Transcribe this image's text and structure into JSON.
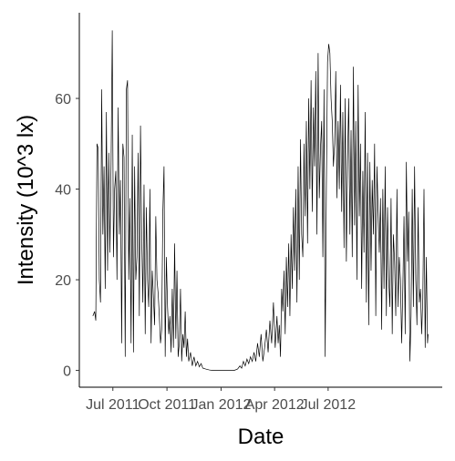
{
  "chart_data": {
    "type": "line",
    "title": "",
    "xlabel": "Date",
    "ylabel": "Intensity (10^3 lx)",
    "x_type": "date",
    "xlim": [
      "2011-05-05",
      "2013-01-11"
    ],
    "ylim": [
      -3.7,
      78.9
    ],
    "grid": false,
    "legend": "none",
    "line_color": "#000000",
    "x_ticks": [
      {
        "value": "2011-07-01",
        "label": "Jul 2011"
      },
      {
        "value": "2011-10-01",
        "label": "Oct 2011"
      },
      {
        "value": "2012-01-01",
        "label": "Jan 2012"
      },
      {
        "value": "2012-04-01",
        "label": "Apr 2012"
      },
      {
        "value": "2012-07-01",
        "label": "Jul 2012"
      }
    ],
    "y_ticks": [
      {
        "value": 0,
        "label": "0"
      },
      {
        "value": 20,
        "label": "20"
      },
      {
        "value": 40,
        "label": "40"
      },
      {
        "value": 60,
        "label": "60"
      }
    ],
    "series": [
      {
        "x": [
          "2011-05-28",
          "2011-05-31",
          "2011-06-02",
          "2011-06-04",
          "2011-06-06",
          "2011-06-08",
          "2011-06-10",
          "2011-06-12",
          "2011-06-14",
          "2011-06-16",
          "2011-06-18",
          "2011-06-20",
          "2011-06-22",
          "2011-06-24",
          "2011-06-26",
          "2011-06-28",
          "2011-06-30",
          "2011-07-02",
          "2011-07-04",
          "2011-07-06",
          "2011-07-08",
          "2011-07-10",
          "2011-07-12",
          "2011-07-14",
          "2011-07-16",
          "2011-07-18",
          "2011-07-20",
          "2011-07-22",
          "2011-07-24",
          "2011-07-26",
          "2011-07-28",
          "2011-07-30",
          "2011-08-01",
          "2011-08-03",
          "2011-08-05",
          "2011-08-07",
          "2011-08-09",
          "2011-08-11",
          "2011-08-13",
          "2011-08-15",
          "2011-08-17",
          "2011-08-19",
          "2011-08-21",
          "2011-08-23",
          "2011-08-25",
          "2011-08-27",
          "2011-08-29",
          "2011-08-31",
          "2011-09-02",
          "2011-09-04",
          "2011-09-06",
          "2011-09-08",
          "2011-09-10",
          "2011-09-12",
          "2011-09-14",
          "2011-09-16",
          "2011-09-18",
          "2011-09-20",
          "2011-09-22",
          "2011-09-24",
          "2011-09-26",
          "2011-09-28",
          "2011-09-30",
          "2011-10-02",
          "2011-10-04",
          "2011-10-06",
          "2011-10-08",
          "2011-10-10",
          "2011-10-12",
          "2011-10-14",
          "2011-10-16",
          "2011-10-18",
          "2011-10-20",
          "2011-10-22",
          "2011-10-24",
          "2011-10-26",
          "2011-10-28",
          "2011-10-30",
          "2011-11-01",
          "2011-11-03",
          "2011-11-05",
          "2011-11-07",
          "2011-11-10",
          "2011-11-13",
          "2011-11-16",
          "2011-11-19",
          "2011-11-22",
          "2011-11-25",
          "2011-11-28",
          "2011-12-01",
          "2011-12-06",
          "2011-12-12",
          "2011-12-18",
          "2011-12-24",
          "2011-12-30",
          "2012-01-05",
          "2012-01-11",
          "2012-01-17",
          "2012-01-23",
          "2012-01-29",
          "2012-02-02",
          "2012-02-05",
          "2012-02-08",
          "2012-02-11",
          "2012-02-14",
          "2012-02-17",
          "2012-02-20",
          "2012-02-23",
          "2012-02-26",
          "2012-02-29",
          "2012-03-03",
          "2012-03-06",
          "2012-03-09",
          "2012-03-12",
          "2012-03-15",
          "2012-03-18",
          "2012-03-21",
          "2012-03-24",
          "2012-03-27",
          "2012-03-30",
          "2012-04-02",
          "2012-04-05",
          "2012-04-07",
          "2012-04-09",
          "2012-04-11",
          "2012-04-13",
          "2012-04-15",
          "2012-04-17",
          "2012-04-19",
          "2012-04-21",
          "2012-04-23",
          "2012-04-25",
          "2012-04-27",
          "2012-04-29",
          "2012-05-01",
          "2012-05-03",
          "2012-05-05",
          "2012-05-07",
          "2012-05-09",
          "2012-05-11",
          "2012-05-13",
          "2012-05-15",
          "2012-05-17",
          "2012-05-19",
          "2012-05-21",
          "2012-05-23",
          "2012-05-25",
          "2012-05-27",
          "2012-05-29",
          "2012-05-31",
          "2012-06-02",
          "2012-06-04",
          "2012-06-06",
          "2012-06-08",
          "2012-06-10",
          "2012-06-12",
          "2012-06-14",
          "2012-06-16",
          "2012-06-18",
          "2012-06-20",
          "2012-06-22",
          "2012-06-24",
          "2012-06-26",
          "2012-06-28",
          "2012-06-30",
          "2012-07-02",
          "2012-07-04",
          "2012-07-06",
          "2012-07-08",
          "2012-07-10",
          "2012-07-12",
          "2012-07-14",
          "2012-07-16",
          "2012-07-18",
          "2012-07-20",
          "2012-07-22",
          "2012-07-24",
          "2012-07-26",
          "2012-07-28",
          "2012-07-30",
          "2012-08-01",
          "2012-08-03",
          "2012-08-05",
          "2012-08-07",
          "2012-08-09",
          "2012-08-11",
          "2012-08-13",
          "2012-08-15",
          "2012-08-17",
          "2012-08-19",
          "2012-08-21",
          "2012-08-23",
          "2012-08-25",
          "2012-08-27",
          "2012-08-29",
          "2012-08-31",
          "2012-09-02",
          "2012-09-04",
          "2012-09-06",
          "2012-09-08",
          "2012-09-10",
          "2012-09-12",
          "2012-09-14",
          "2012-09-16",
          "2012-09-18",
          "2012-09-20",
          "2012-09-22",
          "2012-09-24",
          "2012-09-26",
          "2012-09-28",
          "2012-09-30",
          "2012-10-02",
          "2012-10-04",
          "2012-10-06",
          "2012-10-08",
          "2012-10-10",
          "2012-10-12",
          "2012-10-14",
          "2012-10-16",
          "2012-10-18",
          "2012-10-20",
          "2012-10-22",
          "2012-10-24",
          "2012-10-26",
          "2012-10-28",
          "2012-10-30",
          "2012-11-01",
          "2012-11-03",
          "2012-11-05",
          "2012-11-07",
          "2012-11-09",
          "2012-11-11",
          "2012-11-13",
          "2012-11-15",
          "2012-11-17",
          "2012-11-19",
          "2012-11-21",
          "2012-11-23",
          "2012-11-25",
          "2012-11-27",
          "2012-11-29",
          "2012-12-01",
          "2012-12-03",
          "2012-12-05",
          "2012-12-07",
          "2012-12-09",
          "2012-12-11",
          "2012-12-13",
          "2012-12-15",
          "2012-12-17",
          "2012-12-18"
        ],
        "y": [
          12,
          13,
          11,
          50,
          49,
          20,
          15,
          62,
          30,
          45,
          18,
          57,
          22,
          48,
          26,
          46,
          75,
          25,
          40,
          44,
          20,
          58,
          30,
          42,
          6,
          50,
          47,
          3,
          62,
          64,
          20,
          38,
          6,
          52,
          4,
          45,
          20,
          25,
          48,
          12,
          54,
          30,
          15,
          41,
          8,
          36,
          20,
          14,
          40,
          6,
          22,
          16,
          10,
          34,
          20,
          17,
          12,
          6,
          9,
          35,
          45,
          3,
          25,
          14,
          8,
          12,
          4,
          18,
          5,
          28,
          7,
          22,
          3,
          6,
          18,
          2,
          8,
          5,
          13,
          3,
          7,
          2,
          4,
          1,
          3,
          1,
          2,
          0.8,
          1.5,
          0.5,
          0.3,
          0.1,
          0,
          0,
          0,
          0,
          0,
          0,
          0,
          0.3,
          1,
          0.5,
          2,
          1,
          2.5,
          1.5,
          3,
          2,
          4,
          2,
          6,
          3,
          8,
          2,
          5,
          9,
          4,
          11,
          6,
          15,
          5,
          12,
          6,
          10,
          3,
          18,
          13,
          22,
          8,
          25,
          14,
          28,
          12,
          30,
          18,
          36,
          22,
          40,
          15,
          45,
          20,
          51,
          30,
          25,
          50,
          34,
          55,
          28,
          60,
          40,
          64,
          35,
          58,
          45,
          66,
          30,
          70,
          38,
          49,
          55,
          25,
          62,
          3,
          40,
          68,
          72,
          70,
          60,
          55,
          45,
          50,
          66,
          38,
          55,
          40,
          63,
          35,
          57,
          27,
          60,
          24,
          46,
          60,
          30,
          53,
          25,
          67,
          32,
          55,
          20,
          63,
          34,
          50,
          18,
          44,
          26,
          57,
          15,
          48,
          10,
          46,
          22,
          42,
          30,
          50,
          12,
          45,
          35,
          26,
          38,
          9,
          40,
          18,
          45,
          12,
          36,
          20,
          14,
          38,
          8,
          30,
          24,
          12,
          40,
          14,
          25,
          20,
          6,
          18,
          34,
          8,
          46,
          24,
          35,
          2,
          12,
          40,
          14,
          45,
          20,
          10,
          36,
          15,
          18,
          8,
          16,
          40,
          5,
          25,
          6,
          8
        ]
      }
    ]
  }
}
